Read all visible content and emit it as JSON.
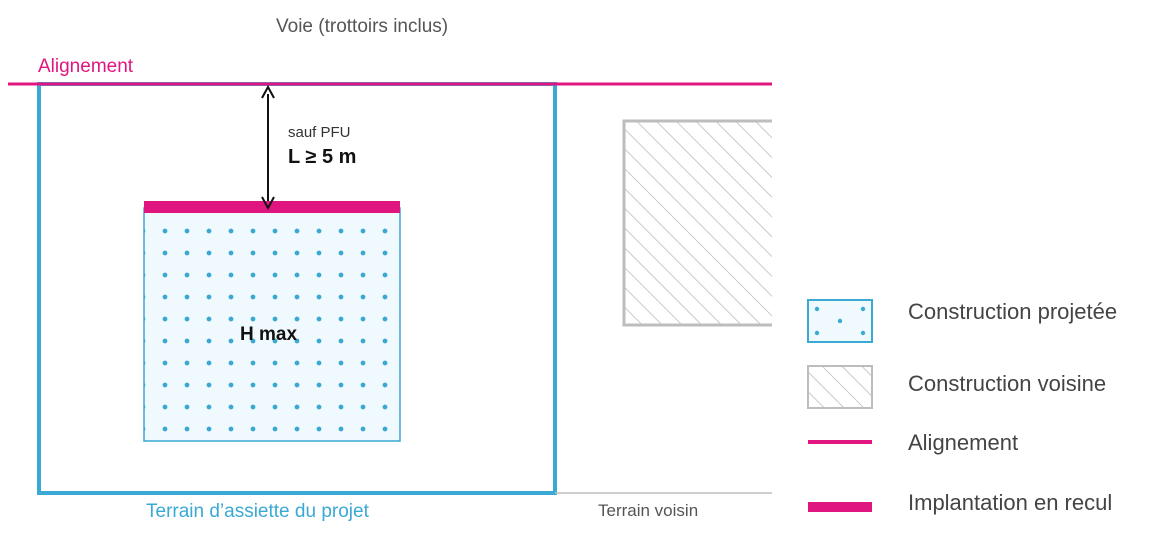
{
  "labels": {
    "road": "Voie (trottoirs inclus)",
    "alignment": "Alignement",
    "exception": "sauf PFU",
    "distance": "L ≥ 5 m",
    "height": "H max",
    "project_site": "Terrain d’assiette du projet",
    "neighbor_site": "Terrain voisin"
  },
  "legend": {
    "projected": "Construction projetée",
    "neighbor": "Construction voisine",
    "alignment": "Alignement",
    "setback": "Implantation en recul"
  },
  "colors": {
    "magenta": "#e0157f",
    "blue": "#3aa9d3",
    "dot": "#3aa9d3",
    "fill": "#f0f9fd",
    "gray": "#bdbdbd"
  }
}
